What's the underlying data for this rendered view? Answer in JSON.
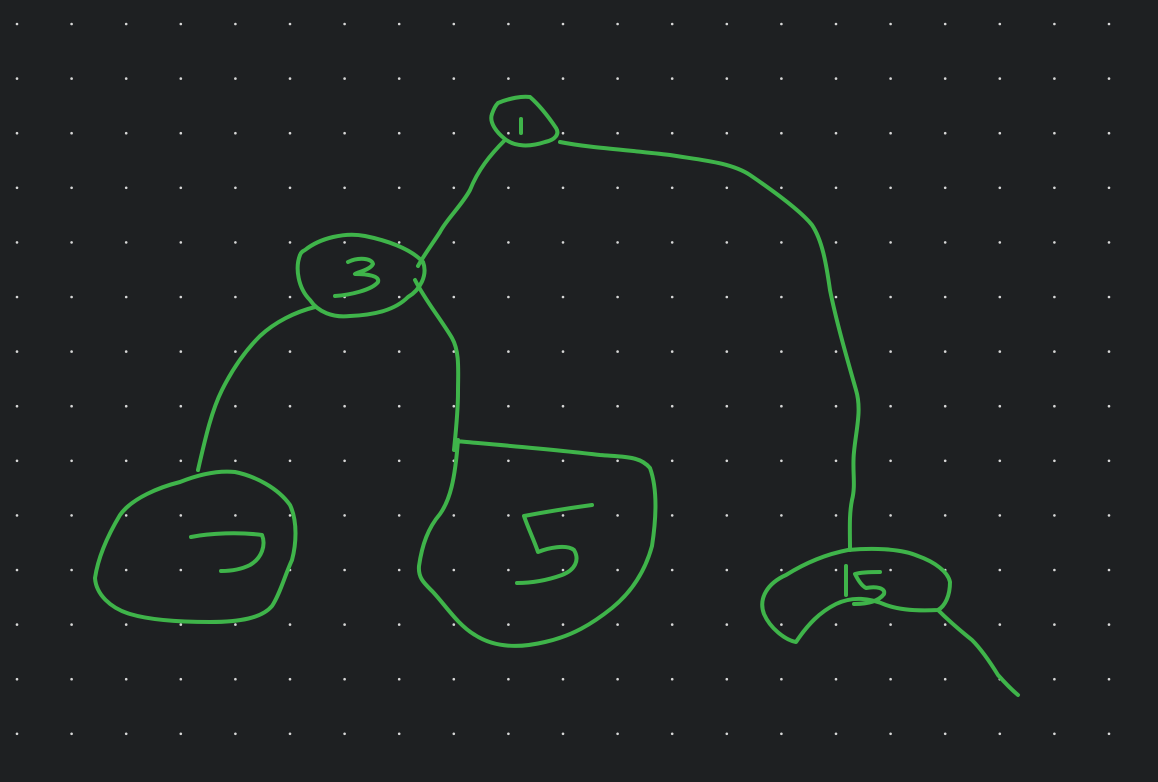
{
  "canvas": {
    "background_color": "#1e2022",
    "grid_dot_color": "#d8d8d8",
    "grid": "dotted",
    "ink_color": "#3fb44a"
  },
  "tree": {
    "nodes": [
      {
        "id": "node-1",
        "label": "1"
      },
      {
        "id": "node-3",
        "label": "3"
      },
      {
        "id": "node-7",
        "label": "7"
      },
      {
        "id": "node-5",
        "label": "5"
      },
      {
        "id": "node-15",
        "label": "15"
      }
    ],
    "edges": [
      {
        "from": "1",
        "to": "3"
      },
      {
        "from": "1",
        "to": "15"
      },
      {
        "from": "3",
        "to": "7"
      },
      {
        "from": "3",
        "to": "5"
      },
      {
        "from": "15",
        "to": "(unlabeled)"
      }
    ]
  }
}
